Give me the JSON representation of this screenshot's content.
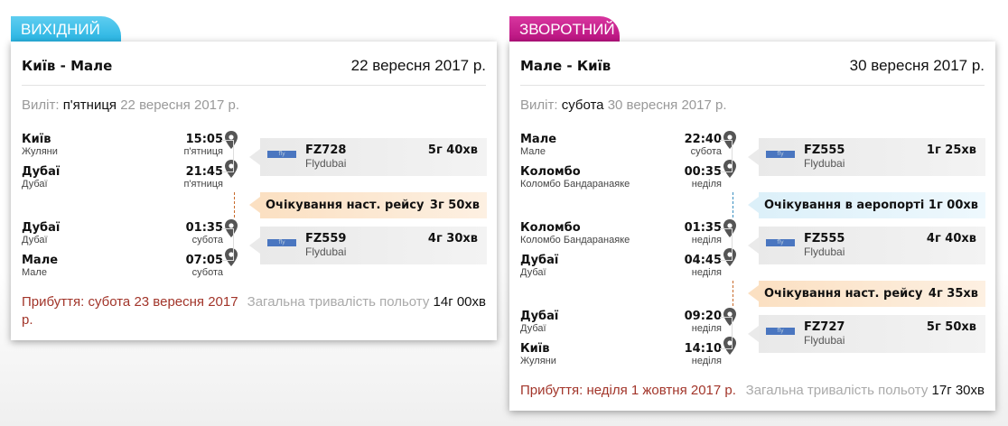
{
  "colors": {
    "outbound_tab": "#29b5e3",
    "return_tab": "#b8127f",
    "arrival": "#a2352a",
    "layover_next": "#fbe0c2",
    "layover_airport": "#dcf0f9"
  },
  "journeys": [
    {
      "tab": "ВИХІДНИЙ",
      "route": "Київ - Мале",
      "date": "22 вересня 2017 р.",
      "departure_label": "Виліт:",
      "departure_day": "п'ятниця",
      "departure_date": "22 вересня 2017 р.",
      "items": [
        {
          "type": "flight",
          "from": {
            "city": "Київ",
            "airport": "Жуляни",
            "time": "15:05",
            "day": "п'ятниця"
          },
          "to": {
            "city": "Дубаї",
            "airport": "Дубаї",
            "time": "21:45",
            "day": "п'ятниця"
          },
          "flight": "FZ728",
          "airline": "Flydubai",
          "duration": "5г 40хв",
          "logo": "flydubai"
        },
        {
          "type": "layover",
          "kind": "o",
          "label": "Очікування наст. рейсу",
          "duration": "3г 50хв"
        },
        {
          "type": "flight",
          "from": {
            "city": "Дубаї",
            "airport": "Дубаї",
            "time": "01:35",
            "day": "субота"
          },
          "to": {
            "city": "Мале",
            "airport": "Мале",
            "time": "07:05",
            "day": "субота"
          },
          "flight": "FZ559",
          "airline": "Flydubai",
          "duration": "4г 30хв",
          "logo": "flydubai"
        }
      ],
      "arrival": "Прибуття: субота 23 вересня 2017 р.",
      "total_label": "Загальна тривалість польоту",
      "total": "14г 00хв"
    },
    {
      "tab": "ЗВОРОТНИЙ",
      "route": "Мале - Київ",
      "date": "30 вересня 2017 р.",
      "departure_label": "Виліт:",
      "departure_day": "субота",
      "departure_date": "30 вересня 2017 р.",
      "items": [
        {
          "type": "flight",
          "from": {
            "city": "Мале",
            "airport": "Мале",
            "time": "22:40",
            "day": "субота"
          },
          "to": {
            "city": "Коломбо",
            "airport": "Коломбо Бандаранаяке",
            "time": "00:35",
            "day": "неділя"
          },
          "flight": "FZ555",
          "airline": "Flydubai",
          "duration": "1г 25хв",
          "logo": "flydubai"
        },
        {
          "type": "layover",
          "kind": "b",
          "label": "Очікування в аеропорті",
          "duration": "1г 00хв"
        },
        {
          "type": "flight",
          "from": {
            "city": "Коломбо",
            "airport": "Коломбо Бандаранаяке",
            "time": "01:35",
            "day": "неділя"
          },
          "to": {
            "city": "Дубаї",
            "airport": "Дубаї",
            "time": "04:45",
            "day": "неділя"
          },
          "flight": "FZ555",
          "airline": "Flydubai",
          "duration": "4г 40хв",
          "logo": "flydubai"
        },
        {
          "type": "layover",
          "kind": "o",
          "label": "Очікування наст. рейсу",
          "duration": "4г 35хв"
        },
        {
          "type": "flight",
          "from": {
            "city": "Дубаї",
            "airport": "Дубаї",
            "time": "09:20",
            "day": "неділя"
          },
          "to": {
            "city": "Київ",
            "airport": "Жуляни",
            "time": "14:10",
            "day": "неділя"
          },
          "flight": "FZ727",
          "airline": "Flydubai",
          "duration": "5г 50хв",
          "logo": "flydubai"
        }
      ],
      "arrival": "Прибуття: неділя 1 жовтня 2017 р.",
      "total_label": "Загальна тривалість польоту",
      "total": "17г 30хв"
    }
  ]
}
